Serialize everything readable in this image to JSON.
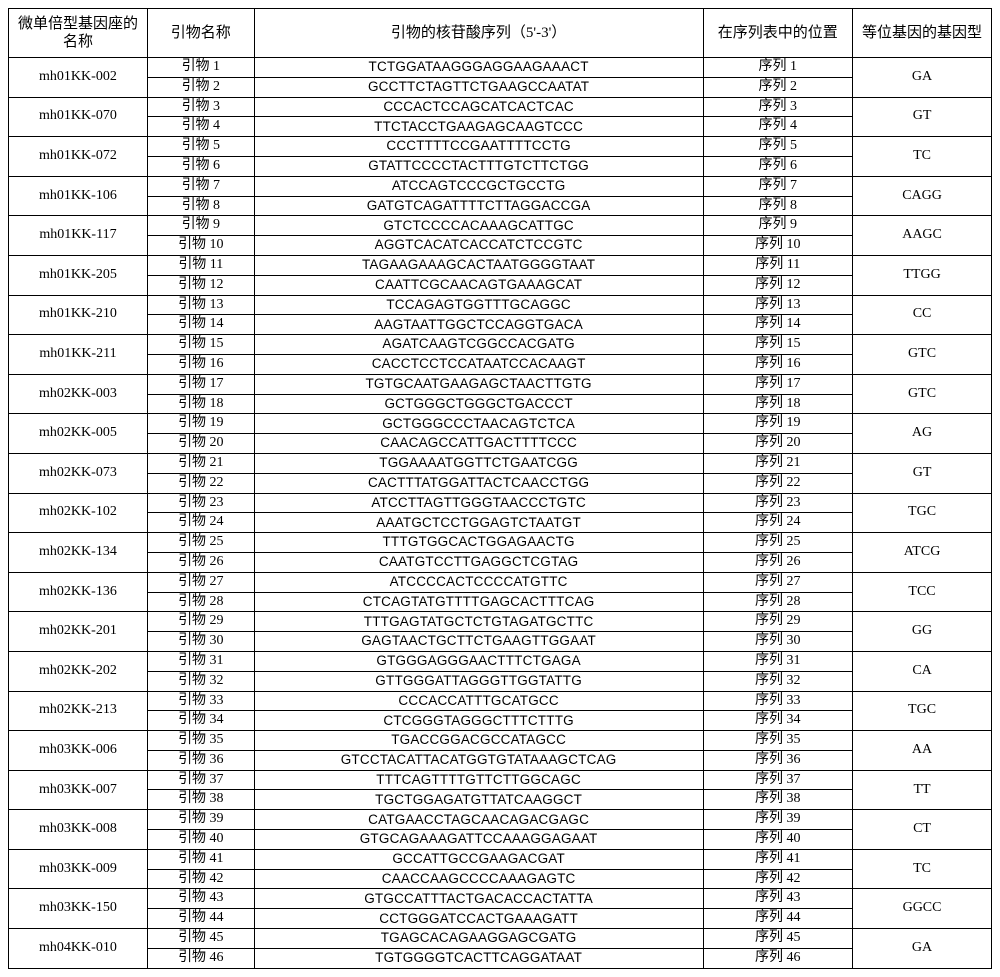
{
  "headers": {
    "locus": "微单倍型基因座的名称",
    "primer_name": "引物名称",
    "sequence": "引物的核苷酸序列（5'-3'）",
    "seqpos": "在序列表中的位置",
    "genotype": "等位基因的基因型"
  },
  "label_primer_prefix": "引物",
  "label_seq_prefix": "序列",
  "rows": [
    {
      "locus": "mh01KK-002",
      "genotype": "GA",
      "p1": {
        "n": "1",
        "seq": "TCTGGATAAGGGAGGAAGAAACT",
        "pos": "1"
      },
      "p2": {
        "n": "2",
        "seq": "GCCTTCTAGTTCTGAAGCCAATAT",
        "pos": "2"
      }
    },
    {
      "locus": "mh01KK-070",
      "genotype": "GT",
      "p1": {
        "n": "3",
        "seq": "CCCACTCCAGCATCACTCAC",
        "pos": "3"
      },
      "p2": {
        "n": "4",
        "seq": "TTCTACCTGAAGAGCAAGTCCC",
        "pos": "4"
      }
    },
    {
      "locus": "mh01KK-072",
      "genotype": "TC",
      "p1": {
        "n": "5",
        "seq": "CCCTTTTCCGAATTTTCCTG",
        "pos": "5"
      },
      "p2": {
        "n": "6",
        "seq": "GTATTCCCCTACTTTGTCTTCTGG",
        "pos": "6"
      }
    },
    {
      "locus": "mh01KK-106",
      "genotype": "CAGG",
      "p1": {
        "n": "7",
        "seq": "ATCCAGTCCCGCTGCCTG",
        "pos": "7"
      },
      "p2": {
        "n": "8",
        "seq": "GATGTCAGATTTTCTTAGGACCGA",
        "pos": "8"
      }
    },
    {
      "locus": "mh01KK-117",
      "genotype": "AAGC",
      "p1": {
        "n": "9",
        "seq": "GTCTCCCCACAAAGCATTGC",
        "pos": "9"
      },
      "p2": {
        "n": "10",
        "seq": "AGGTCACATCACCATCTCCGTC",
        "pos": "10"
      }
    },
    {
      "locus": "mh01KK-205",
      "genotype": "TTGG",
      "p1": {
        "n": "11",
        "seq": "TAGAAGAAAGCACTAATGGGGTAAT",
        "pos": "11"
      },
      "p2": {
        "n": "12",
        "seq": "CAATTCGCAACAGTGAAAGCAT",
        "pos": "12"
      }
    },
    {
      "locus": "mh01KK-210",
      "genotype": "CC",
      "p1": {
        "n": "13",
        "seq": "TCCAGAGTGGTTTGCAGGC",
        "pos": "13"
      },
      "p2": {
        "n": "14",
        "seq": "AAGTAATTGGCTCCAGGTGACA",
        "pos": "14"
      }
    },
    {
      "locus": "mh01KK-211",
      "genotype": "GTC",
      "p1": {
        "n": "15",
        "seq": "AGATCAAGTCGGCCACGATG",
        "pos": "15"
      },
      "p2": {
        "n": "16",
        "seq": "CACCTCCTCCATAATCCACAAGT",
        "pos": "16"
      }
    },
    {
      "locus": "mh02KK-003",
      "genotype": "GTC",
      "p1": {
        "n": "17",
        "seq": "TGTGCAATGAAGAGCTAACTTGTG",
        "pos": "17"
      },
      "p2": {
        "n": "18",
        "seq": "GCTGGGCTGGGCTGACCCT",
        "pos": "18"
      }
    },
    {
      "locus": "mh02KK-005",
      "genotype": "AG",
      "p1": {
        "n": "19",
        "seq": "GCTGGGCCCTAACAGTCTCA",
        "pos": "19"
      },
      "p2": {
        "n": "20",
        "seq": "CAACAGCCATTGACTTTTCCC",
        "pos": "20"
      }
    },
    {
      "locus": "mh02KK-073",
      "genotype": "GT",
      "p1": {
        "n": "21",
        "seq": "TGGAAAATGGTTCTGAATCGG",
        "pos": "21"
      },
      "p2": {
        "n": "22",
        "seq": "CACTTTATGGATTACTCAACCTGG",
        "pos": "22"
      }
    },
    {
      "locus": "mh02KK-102",
      "genotype": "TGC",
      "p1": {
        "n": "23",
        "seq": "ATCCTTAGTTGGGTAACCCTGTC",
        "pos": "23"
      },
      "p2": {
        "n": "24",
        "seq": "AAATGCTCCTGGAGTCTAATGT",
        "pos": "24"
      }
    },
    {
      "locus": "mh02KK-134",
      "genotype": "ATCG",
      "p1": {
        "n": "25",
        "seq": "TTTGTGGCACTGGAGAACTG",
        "pos": "25"
      },
      "p2": {
        "n": "26",
        "seq": "CAATGTCCTTGAGGCTCGTAG",
        "pos": "26"
      }
    },
    {
      "locus": "mh02KK-136",
      "genotype": "TCC",
      "p1": {
        "n": "27",
        "seq": "ATCCCCACTCCCCATGTTC",
        "pos": "27"
      },
      "p2": {
        "n": "28",
        "seq": "CTCAGTATGTTTTGAGCACTTTCAG",
        "pos": "28"
      }
    },
    {
      "locus": "mh02KK-201",
      "genotype": "GG",
      "p1": {
        "n": "29",
        "seq": "TTTGAGTATGCTCTGTAGATGCTTC",
        "pos": "29"
      },
      "p2": {
        "n": "30",
        "seq": "GAGTAACTGCTTCTGAAGTTGGAAT",
        "pos": "30"
      }
    },
    {
      "locus": "mh02KK-202",
      "genotype": "CA",
      "p1": {
        "n": "31",
        "seq": "GTGGGAGGGAACTTTCTGAGA",
        "pos": "31"
      },
      "p2": {
        "n": "32",
        "seq": "GTTGGGATTAGGGTTGGTATTG",
        "pos": "32"
      }
    },
    {
      "locus": "mh02KK-213",
      "genotype": "TGC",
      "p1": {
        "n": "33",
        "seq": "CCCACCATTTGCATGCC",
        "pos": "33"
      },
      "p2": {
        "n": "34",
        "seq": "CTCGGGTAGGGCTTTCTTTG",
        "pos": "34"
      }
    },
    {
      "locus": "mh03KK-006",
      "genotype": "AA",
      "p1": {
        "n": "35",
        "seq": "TGACCGGACGCCATAGCC",
        "pos": "35"
      },
      "p2": {
        "n": "36",
        "seq": "GTCCTACATTACATGGTGTATAAAGCTCAG",
        "pos": "36"
      }
    },
    {
      "locus": "mh03KK-007",
      "genotype": "TT",
      "p1": {
        "n": "37",
        "seq": "TTTCAGTTTTGTTCTTGGCAGC",
        "pos": "37"
      },
      "p2": {
        "n": "38",
        "seq": "TGCTGGAGATGTTATCAAGGCT",
        "pos": "38"
      }
    },
    {
      "locus": "mh03KK-008",
      "genotype": "CT",
      "p1": {
        "n": "39",
        "seq": "CATGAACCTAGCAACAGACGAGC",
        "pos": "39"
      },
      "p2": {
        "n": "40",
        "seq": "GTGCAGAAAGATTCCAAAGGAGAAT",
        "pos": "40"
      }
    },
    {
      "locus": "mh03KK-009",
      "genotype": "TC",
      "p1": {
        "n": "41",
        "seq": "GCCATTGCCGAAGACGAT",
        "pos": "41"
      },
      "p2": {
        "n": "42",
        "seq": "CAACCAAGCCCCAAAGAGTC",
        "pos": "42"
      }
    },
    {
      "locus": "mh03KK-150",
      "genotype": "GGCC",
      "p1": {
        "n": "43",
        "seq": "GTGCCATTTACTGACACCACTATTA",
        "pos": "43"
      },
      "p2": {
        "n": "44",
        "seq": "CCTGGGATCCACTGAAAGATT",
        "pos": "44"
      }
    },
    {
      "locus": "mh04KK-010",
      "genotype": "GA",
      "p1": {
        "n": "45",
        "seq": "TGAGCACAGAAGGAGCGATG",
        "pos": "45"
      },
      "p2": {
        "n": "46",
        "seq": "TGTGGGGTCACTTCAGGATAAT",
        "pos": "46"
      }
    }
  ]
}
